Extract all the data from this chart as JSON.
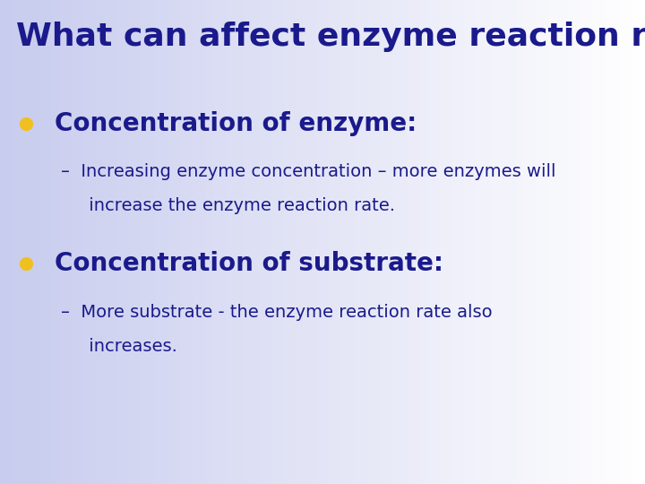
{
  "title": "What can affect enzyme reaction rates?",
  "title_color": "#1a1a8c",
  "title_fontsize": 26,
  "title_weight": "bold",
  "title_font": "DejaVu Sans",
  "bg_color_left": "#c8ccee",
  "bg_color_right": "#ffffff",
  "bullet_color": "#f0c020",
  "bullet1_header": "Concentration of enzyme:",
  "bullet1_text_line1": "–  Increasing enzyme concentration – more enzymes will",
  "bullet1_text_line2": "     increase the enzyme reaction rate.",
  "bullet2_header": "Concentration of substrate:",
  "bullet2_text_line1": "–  More substrate - the enzyme reaction rate also",
  "bullet2_text_line2": "     increases.",
  "header_color": "#1a1a8c",
  "header_fontsize": 20,
  "body_color": "#1a1a8c",
  "body_fontsize": 14,
  "fig_width": 7.2,
  "fig_height": 5.4,
  "dpi": 100
}
